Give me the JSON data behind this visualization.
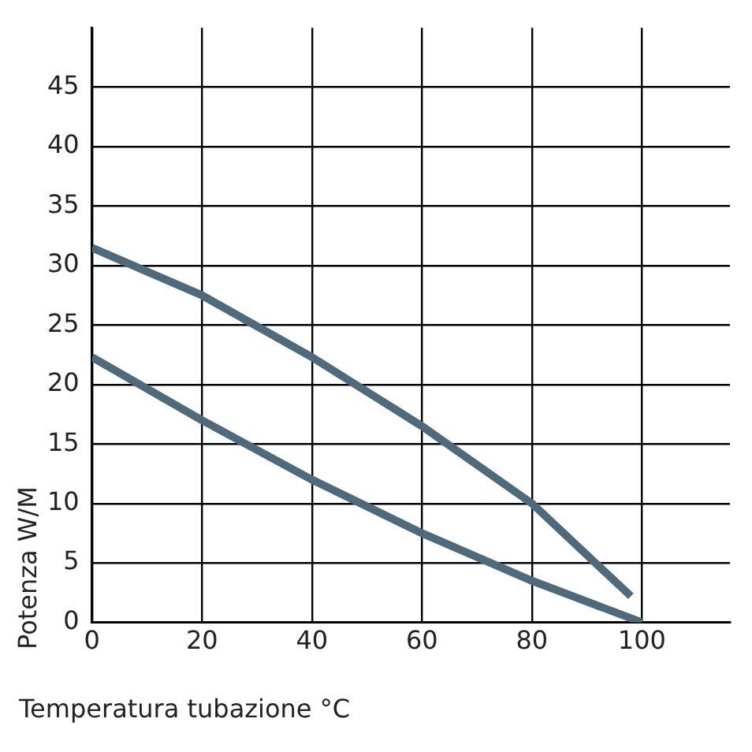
{
  "chart_data": {
    "type": "line",
    "xlabel": "Temperatura tubazione °C",
    "ylabel": "Potenza W/M",
    "xlim": [
      0,
      116
    ],
    "xticks": [
      0,
      20,
      40,
      60,
      80,
      100
    ],
    "ylim": [
      0,
      50
    ],
    "yticks": [
      0,
      5,
      10,
      15,
      20,
      25,
      30,
      35,
      40,
      45
    ],
    "grid": true,
    "marker": "none",
    "line_style": "solid",
    "series": [
      {
        "color": "#4e6a7b",
        "x": [
          0,
          20,
          40,
          60,
          80,
          98
        ],
        "values": [
          31.5,
          27.5,
          22.3,
          16.5,
          10,
          2.2
        ]
      },
      {
        "color": "#4e6a7b",
        "x": [
          0,
          20,
          40,
          60,
          80,
          100
        ],
        "values": [
          22.3,
          17,
          12,
          7.5,
          3.5,
          0
        ]
      }
    ]
  }
}
